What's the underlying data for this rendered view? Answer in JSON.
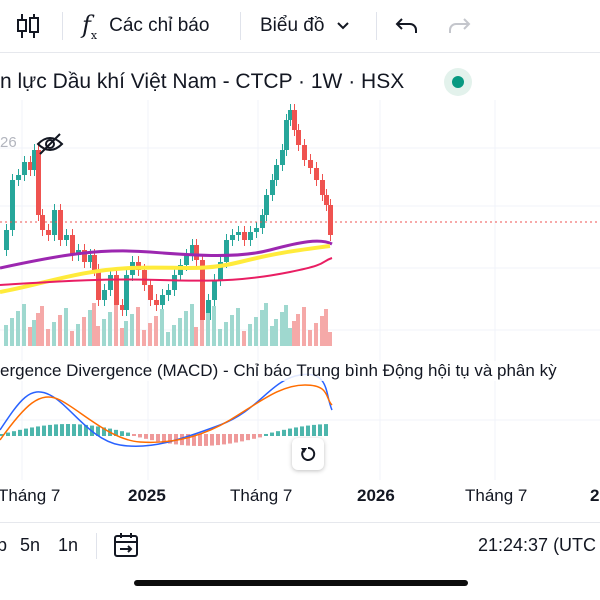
{
  "toolbar": {
    "indicators_label": "Các chỉ báo",
    "chart_type_label": "Biểu đồ",
    "fx_symbol": "f",
    "fx_sub": "x"
  },
  "header": {
    "title": "n lực Dầu khí Việt Nam - CTCP · 1W · HSX",
    "price_fragment": "26",
    "status_color": "#089981"
  },
  "macd": {
    "label": "ergence Divergence (MACD) - Chỉ báo Trung bình Động hội tụ và phân kỳ"
  },
  "time_axis": {
    "ticks": [
      "Tháng 7",
      "2025",
      "Tháng 7",
      "2026",
      "Tháng 7",
      "2"
    ]
  },
  "bottom_bar": {
    "range_partial": "p",
    "range_5y": "5n",
    "range_1y": "1n",
    "clock": "21:24:37 (UTC"
  },
  "colors": {
    "up": "#26a69a",
    "down": "#ef5350",
    "ma_purple": "#9c27b0",
    "ma_yellow": "#ffeb3b",
    "ma_red": "#e91e63",
    "macd_line": "#2962ff",
    "signal_line": "#ff6d00"
  },
  "icons": [
    "candles-icon",
    "undo-icon",
    "redo-icon",
    "eye-off-icon",
    "reset-icon",
    "date-range-icon",
    "chevron-down-icon"
  ]
}
